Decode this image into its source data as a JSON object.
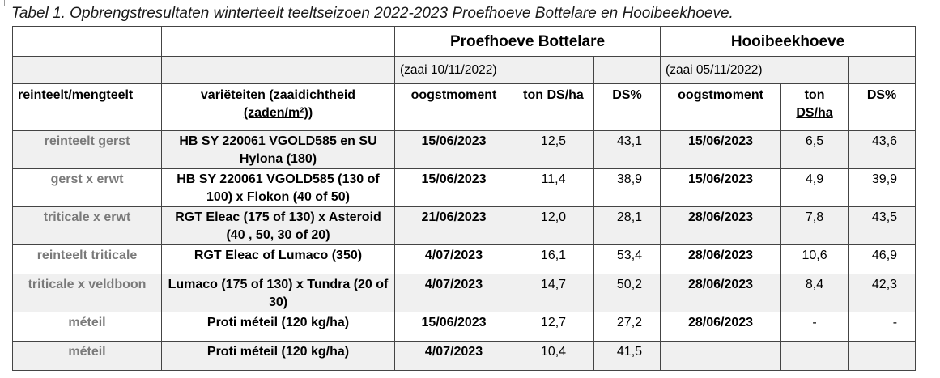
{
  "caption": "Tabel 1. Opbrengstresultaten winterteelt teeltseizoen 2022-2023 Proefhoeve Bottelare en Hooibeekhoeve.",
  "farms": [
    {
      "name": "Proefhoeve Bottelare",
      "sowing": "(zaai 10/11/2022)"
    },
    {
      "name": "Hooibeekhoeve",
      "sowing": "(zaai  05/11/2022)"
    }
  ],
  "headers": {
    "crop": "reinteelt/mengteelt",
    "varieties": "variëteiten (zaaidichtheid (zaden/m²))",
    "harvest": "oogstmoment",
    "yield": "ton DS/ha",
    "dm": "DS%"
  },
  "rows": [
    {
      "crop": "reinteelt gerst",
      "varieties": "HB SY 220061 VGOLD585 en  SU Hylona (180)",
      "b_date": "15/06/2023",
      "b_ton": "12,5",
      "b_ds": "43,1",
      "h_date": "15/06/2023",
      "h_ton": "6,5",
      "h_ds": "43,6"
    },
    {
      "crop": "gerst x erwt",
      "varieties": "HB SY 220061 VGOLD585 (130 of 100) x Flokon (40 of 50)",
      "b_date": "15/06/2023",
      "b_ton": "11,4",
      "b_ds": "38,9",
      "h_date": "15/06/2023",
      "h_ton": "4,9",
      "h_ds": "39,9"
    },
    {
      "crop": "triticale x erwt",
      "varieties": "RGT Eleac (175 of 130) x Asteroid (40 , 50, 30 of 20)",
      "b_date": "21/06/2023",
      "b_ton": "12,0",
      "b_ds": "28,1",
      "h_date": "28/06/2023",
      "h_ton": "7,8",
      "h_ds": "43,5"
    },
    {
      "crop": "reinteelt triticale",
      "varieties": "RGT Eleac of Lumaco (350)",
      "b_date": "4/07/2023",
      "b_ton": "16,1",
      "b_ds": "53,4",
      "h_date": "28/06/2023",
      "h_ton": "10,6",
      "h_ds": "46,9"
    },
    {
      "crop": "triticale x veldboon",
      "varieties": "Lumaco (175 of 130) x Tundra (20 of 30)",
      "b_date": "4/07/2023",
      "b_ton": "14,7",
      "b_ds": "50,2",
      "h_date": "28/06/2023",
      "h_ton": "8,4",
      "h_ds": "42,3"
    },
    {
      "crop": "méteil",
      "varieties": "Proti méteil (120 kg/ha)",
      "b_date": "15/06/2023",
      "b_ton": "12,7",
      "b_ds": "27,2",
      "h_date": "28/06/2023",
      "h_ton": "-",
      "h_ds": "-"
    },
    {
      "crop": "méteil",
      "varieties": "Proti méteil (120 kg/ha)",
      "b_date": "4/07/2023",
      "b_ton": "10,4",
      "b_ds": "41,5",
      "h_date": "",
      "h_ton": "",
      "h_ds": ""
    }
  ]
}
